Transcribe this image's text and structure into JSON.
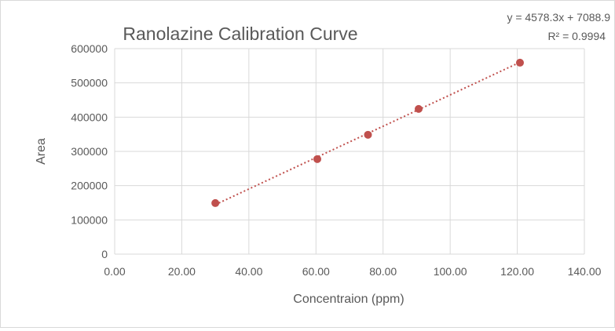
{
  "chart_data": {
    "type": "scatter",
    "title": "Ranolazine Calibration Curve",
    "xlabel": "Concentraion (ppm)",
    "ylabel": "Area",
    "xlim": [
      0,
      140
    ],
    "ylim": [
      0,
      600000
    ],
    "xticks": [
      "0.00",
      "20.00",
      "40.00",
      "60.00",
      "80.00",
      "100.00",
      "120.00",
      "140.00"
    ],
    "yticks": [
      "0",
      "100000",
      "200000",
      "300000",
      "400000",
      "500000",
      "600000"
    ],
    "grid": true,
    "series": [
      {
        "name": "Area",
        "x": [
          30.0,
          60.4,
          75.5,
          90.6,
          120.8
        ],
        "y": [
          149000,
          277500,
          348500,
          424000,
          559000
        ],
        "color": "#C0504D"
      }
    ],
    "trendline": {
      "slope": 4578.3,
      "intercept": 7088.9,
      "x_range": [
        30.0,
        120.8
      ],
      "color": "#C0504D",
      "style": "dotted"
    },
    "annotations": {
      "equation": "y = 4578.3x + 7088.9",
      "r_squared": "R² = 0.9994"
    }
  }
}
